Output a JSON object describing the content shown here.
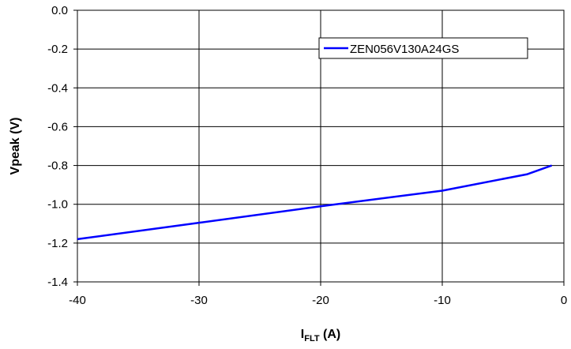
{
  "chart_data": {
    "type": "line",
    "title": "",
    "xlabel_main": "I",
    "xlabel_sub": "FLT",
    "xlabel_unit": " (A)",
    "ylabel": "Vpeak (V)",
    "xlim": [
      -40,
      0
    ],
    "ylim": [
      -1.4,
      0.0
    ],
    "x_ticks": [
      -40,
      -30,
      -20,
      -10,
      0
    ],
    "x_tick_labels": [
      "-40",
      "-30",
      "-20",
      "-10",
      "0"
    ],
    "y_ticks": [
      0.0,
      -0.2,
      -0.4,
      -0.6,
      -0.8,
      -1.0,
      -1.2,
      -1.4
    ],
    "y_tick_labels": [
      "0.0",
      "-0.2",
      "-0.4",
      "-0.6",
      "-0.8",
      "-1.0",
      "-1.2",
      "-1.4"
    ],
    "grid": true,
    "legend_position": "top-right",
    "series": [
      {
        "name": "ZEN056V130A24GS",
        "color": "#0000ff",
        "x": [
          -40,
          -30,
          -20,
          -10,
          -3,
          -1
        ],
        "y": [
          -1.18,
          -1.095,
          -1.01,
          -0.93,
          -0.845,
          -0.8
        ]
      }
    ]
  }
}
